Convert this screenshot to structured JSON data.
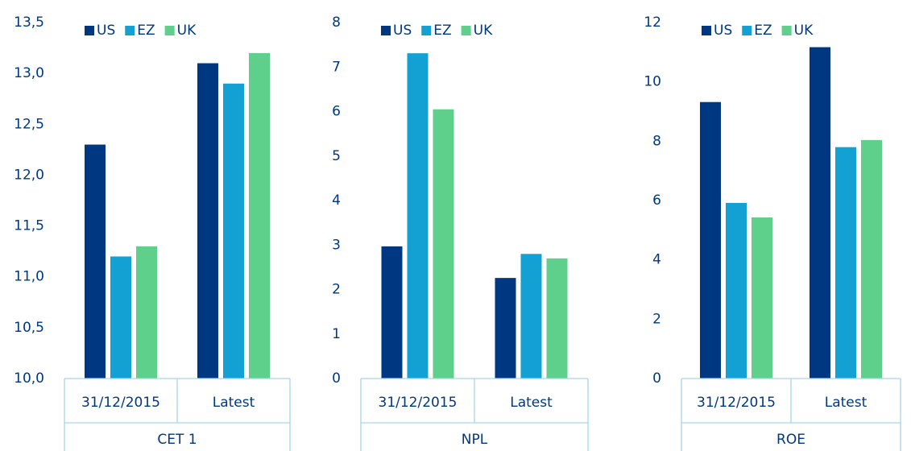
{
  "chart_data": [
    {
      "type": "bar",
      "xlabel": "CET 1",
      "categories": [
        "31/12/2015",
        "Latest"
      ],
      "series": [
        {
          "name": "US",
          "color": "#003781",
          "values": [
            12.3,
            13.1
          ]
        },
        {
          "name": "EZ",
          "color": "#13a0d3",
          "values": [
            11.2,
            12.9
          ]
        },
        {
          "name": "UK",
          "color": "#5fcf8c",
          "values": [
            11.3,
            13.2
          ]
        }
      ],
      "ylim": [
        10,
        13.5
      ],
      "yticks": [
        {
          "value": 10,
          "label": "10,0"
        },
        {
          "value": 10.5,
          "label": "10,5"
        },
        {
          "value": 11,
          "label": "11,0"
        },
        {
          "value": 11.5,
          "label": "11,5"
        },
        {
          "value": 12,
          "label": "12,0"
        },
        {
          "value": 12.5,
          "label": "12,5"
        },
        {
          "value": 13,
          "label": "13,0"
        },
        {
          "value": 13.5,
          "label": "13,5"
        }
      ]
    },
    {
      "type": "bar",
      "xlabel": "NPL",
      "categories": [
        "31/12/2015",
        "Latest"
      ],
      "series": [
        {
          "name": "US",
          "color": "#003781",
          "values": [
            2.97,
            2.26
          ]
        },
        {
          "name": "EZ",
          "color": "#13a0d3",
          "values": [
            7.31,
            2.8
          ]
        },
        {
          "name": "UK",
          "color": "#5fcf8c",
          "values": [
            6.05,
            2.7
          ]
        }
      ],
      "ylim": [
        0,
        8
      ],
      "yticks": [
        0,
        1,
        2,
        3,
        4,
        5,
        6,
        7,
        8
      ]
    },
    {
      "type": "bar",
      "xlabel": "ROE",
      "categories": [
        "31/12/2015",
        "Latest"
      ],
      "series": [
        {
          "name": "US",
          "color": "#003781",
          "values": [
            9.32,
            11.17
          ]
        },
        {
          "name": "EZ",
          "color": "#13a0d3",
          "values": [
            5.92,
            7.8
          ]
        },
        {
          "name": "UK",
          "color": "#5fcf8c",
          "values": [
            5.43,
            8.04
          ]
        }
      ],
      "ylim": [
        0,
        12
      ],
      "yticks": [
        0,
        2,
        4,
        6,
        8,
        10,
        12
      ]
    }
  ]
}
